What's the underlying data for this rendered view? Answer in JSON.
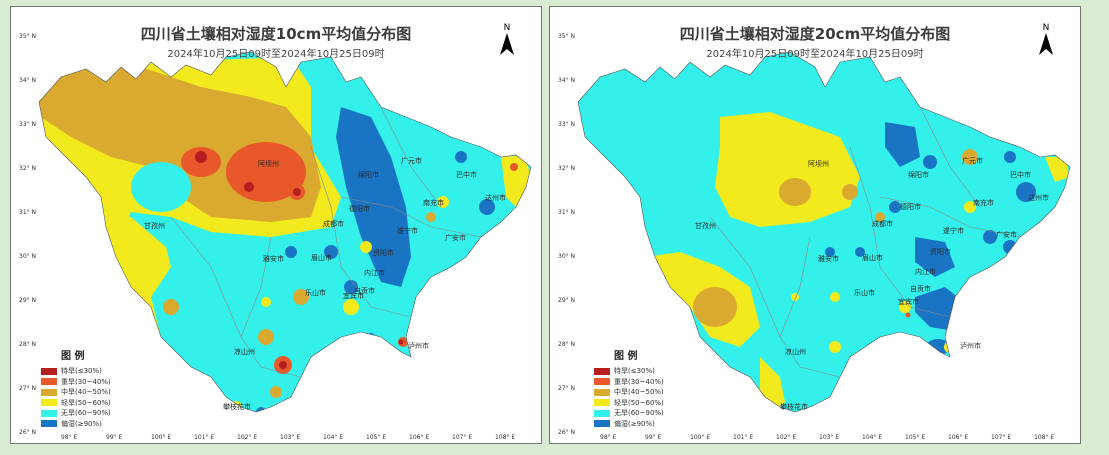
{
  "maps": [
    {
      "title": "四川省土壤相对湿度10cm平均值分布图",
      "subtitle": "2024年10月25日09时至2024年10月25日09时",
      "north_label": "N",
      "places": [
        "阿坝州",
        "广元市",
        "绵阳市",
        "巴中市",
        "达州市",
        "南充市",
        "德阳市",
        "成都市",
        "遂宁市",
        "广安市",
        "甘孜州",
        "资阳市",
        "雅安市",
        "眉山市",
        "内江市",
        "乐山市",
        "自贡市",
        "泸州市",
        "宜宾市",
        "凉山州",
        "攀枝花市"
      ]
    },
    {
      "title": "四川省土壤相对湿度20cm平均值分布图",
      "subtitle": "2024年10月25日09时至2024年10月25日09时",
      "north_label": "N",
      "places": [
        "阿坝州",
        "广元市",
        "绵阳市",
        "巴中市",
        "达州市",
        "南充市",
        "德阳市",
        "成都市",
        "遂宁市",
        "广安市",
        "甘孜州",
        "资阳市",
        "雅安市",
        "眉山市",
        "内江市",
        "乐山市",
        "自贡市",
        "泸州市",
        "宜宾市",
        "凉山州",
        "攀枝花市"
      ]
    }
  ],
  "latitude_labels": [
    "35° N",
    "34° N",
    "33° N",
    "32° N",
    "31° N",
    "30° N",
    "29° N",
    "28° N",
    "27° N",
    "26° N"
  ],
  "longitude_labels": [
    "98° E",
    "99° E",
    "100° E",
    "101° E",
    "102° E",
    "103° E",
    "104° E",
    "105° E",
    "106° E",
    "107° E",
    "108° E"
  ],
  "legend": {
    "title": "图 例",
    "items": [
      {
        "label": "特旱(≤30%)",
        "color": "#b41e1e"
      },
      {
        "label": "重旱(30~40%)",
        "color": "#e8582a"
      },
      {
        "label": "中旱(40~50%)",
        "color": "#d9a930"
      },
      {
        "label": "轻旱(50~60%)",
        "color": "#f2ea1c"
      },
      {
        "label": "无旱(60~90%)",
        "color": "#33f0ea"
      },
      {
        "label": "偏湿(≥90%)",
        "color": "#1a74c4"
      }
    ]
  }
}
